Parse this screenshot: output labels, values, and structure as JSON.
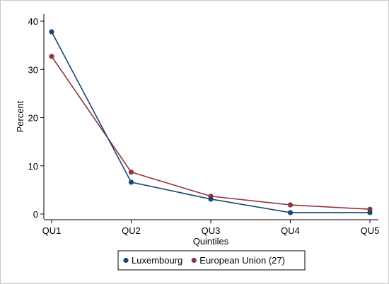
{
  "chart_data": {
    "type": "line",
    "categories": [
      "QU1",
      "QU2",
      "QU3",
      "QU4",
      "QU5"
    ],
    "xlabel": "Quintiles",
    "ylabel": "Percent",
    "ylim": [
      0,
      40
    ],
    "yticks": [
      0,
      10,
      20,
      30,
      40
    ],
    "grid": false,
    "legend_position": "bottom",
    "series": [
      {
        "name": "Luxembourg",
        "color": "#1a476f",
        "values": [
          37.8,
          6.6,
          3.1,
          0.3,
          0.3
        ]
      },
      {
        "name": "European Union (27)",
        "color": "#90353b",
        "values": [
          32.7,
          8.7,
          3.7,
          1.9,
          1.0
        ]
      }
    ]
  }
}
